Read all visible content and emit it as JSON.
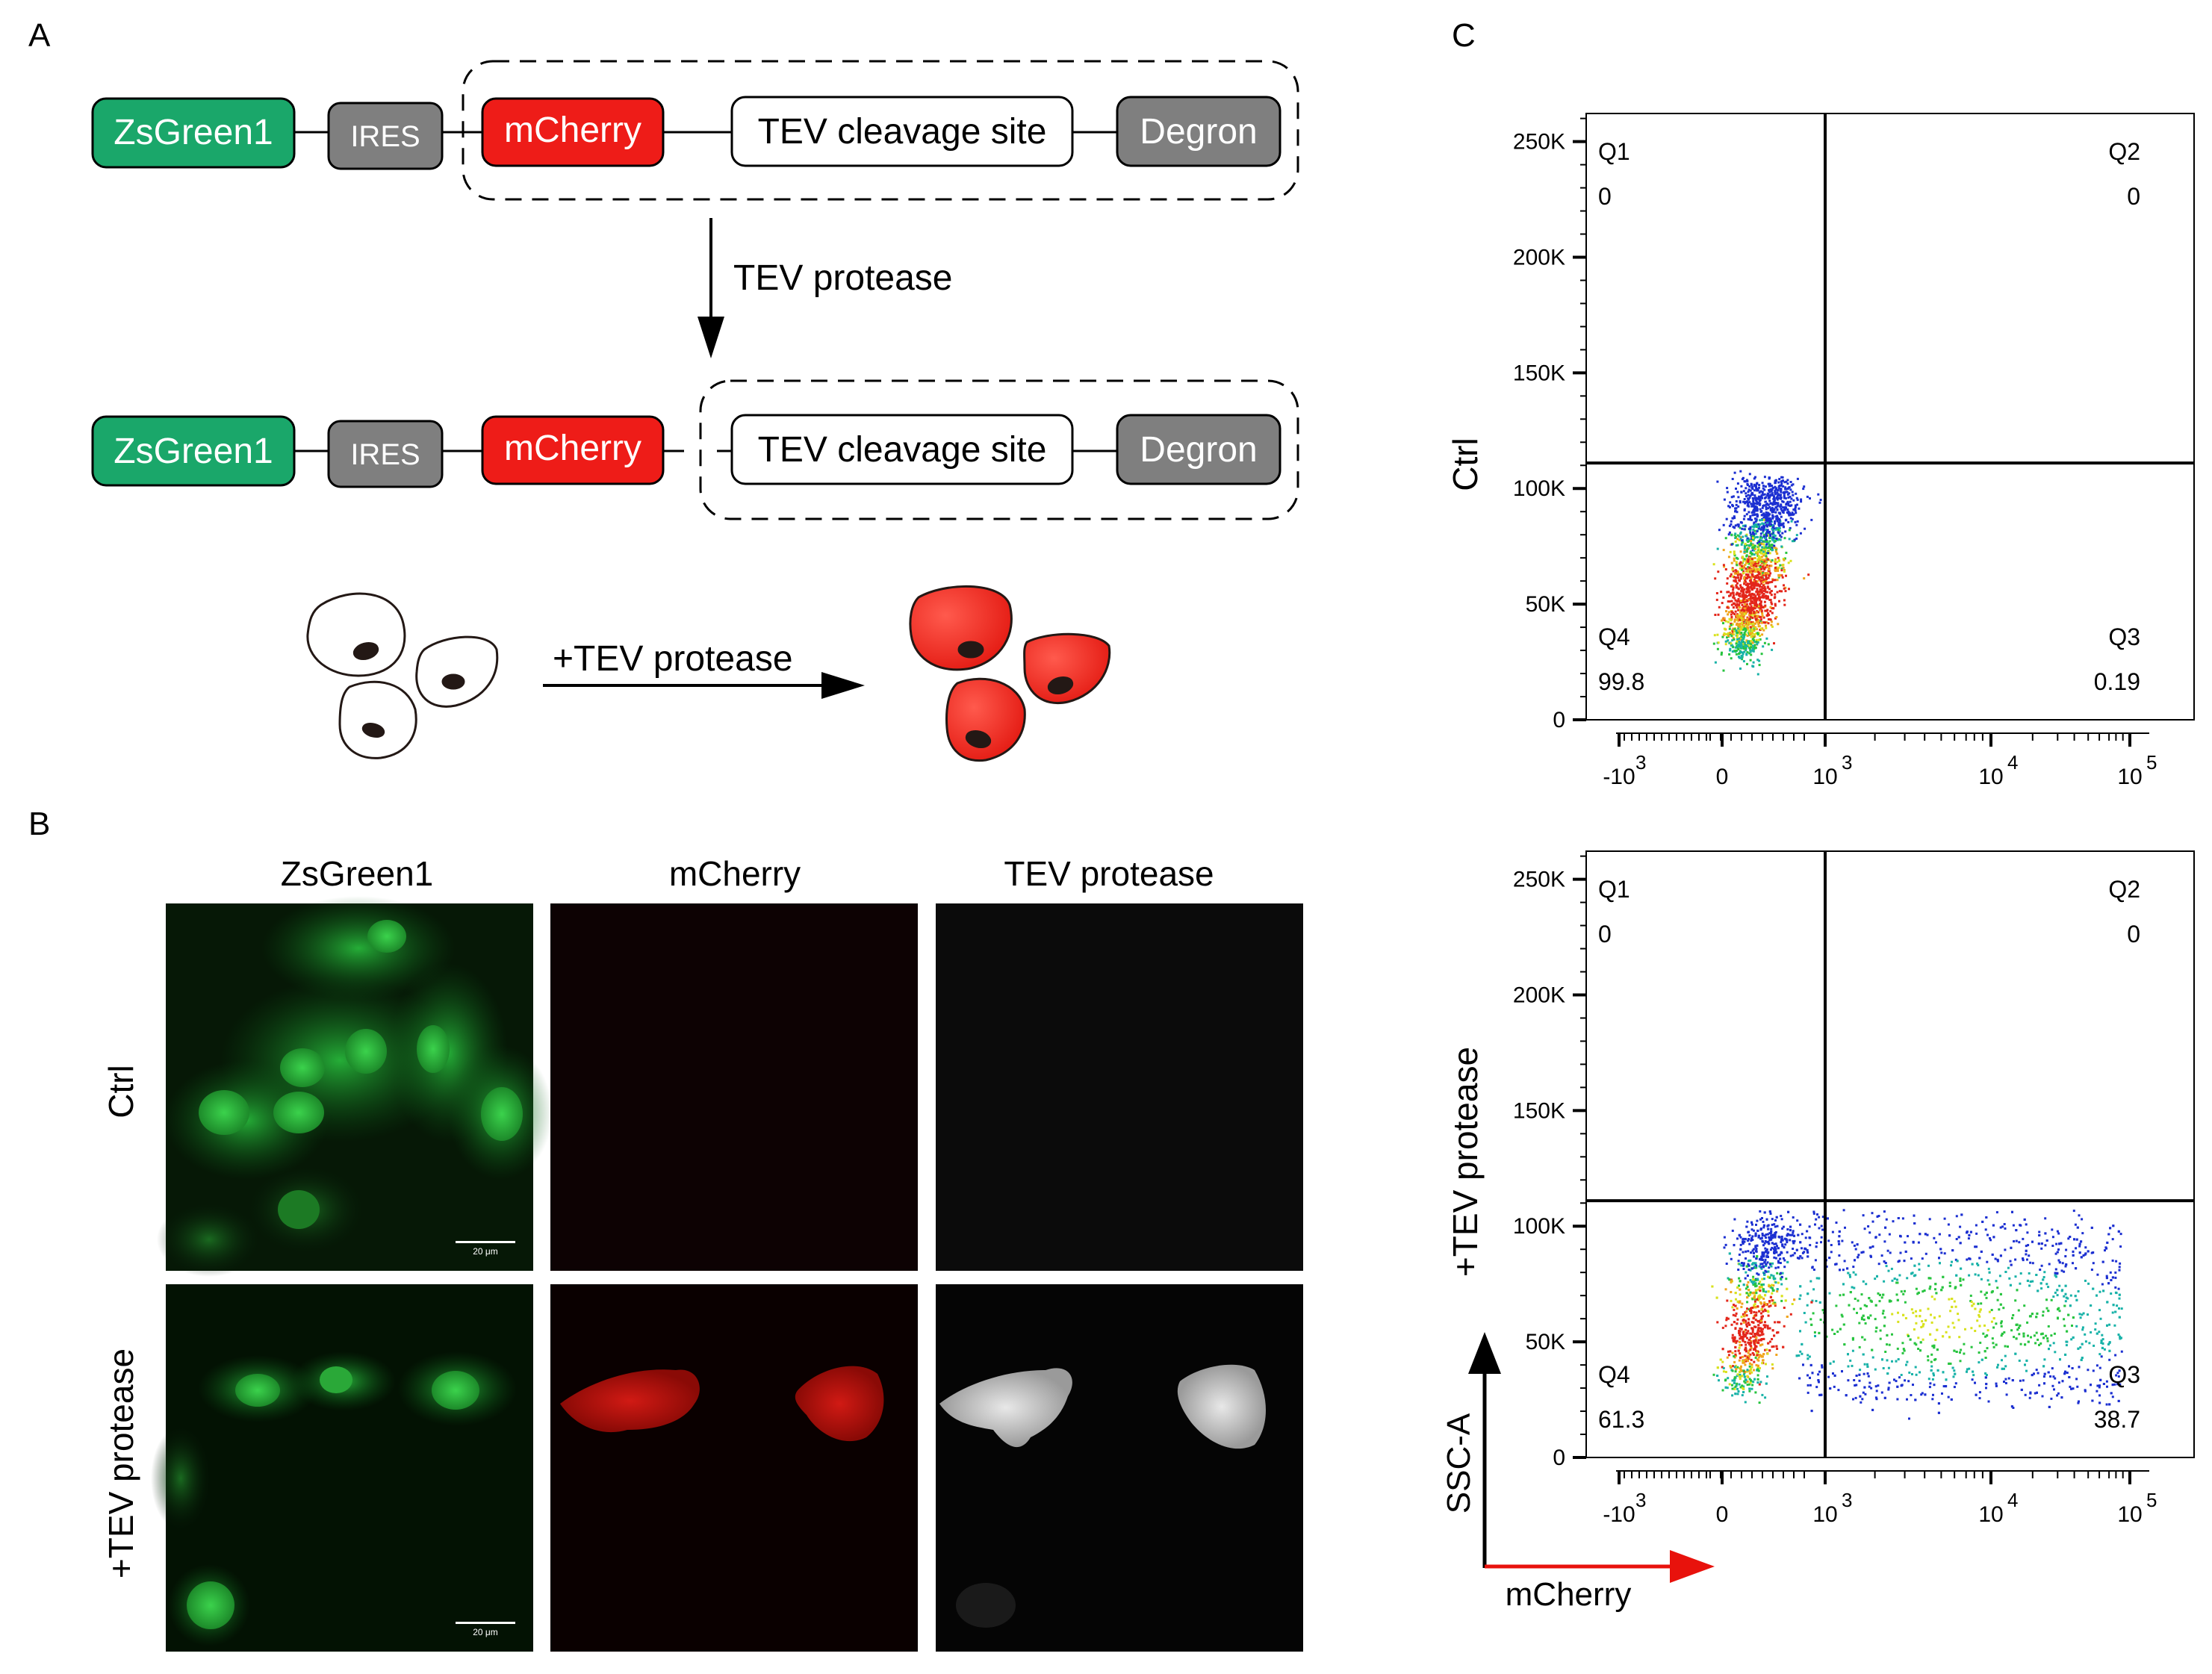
{
  "panels": {
    "a": "A",
    "b": "B",
    "c": "C"
  },
  "construct": {
    "zsgreen": "ZsGreen1",
    "ires": "IRES",
    "mcherry": "mCherry",
    "tev_site": "TEV cleavage site",
    "degron": "Degron",
    "arrow_label": "TEV protease",
    "cells_arrow_label": "+TEV protease"
  },
  "microscopy": {
    "columns": [
      "ZsGreen1",
      "mCherry",
      "TEV protease"
    ],
    "rows": [
      "Ctrl",
      "+TEV protease"
    ],
    "scale_bar": "20 μm"
  },
  "flow": {
    "rows": [
      "Ctrl",
      "+TEV protease"
    ],
    "x_label": "mCherry",
    "y_label": "SSC-A",
    "y_ticks": [
      "250K",
      "200K",
      "150K",
      "100K",
      "50K",
      "0"
    ],
    "x_ticks": [
      {
        "base": "-10",
        "exp": "3"
      },
      {
        "base": "0",
        "exp": ""
      },
      {
        "base": "10",
        "exp": "3"
      },
      {
        "base": "10",
        "exp": "4"
      },
      {
        "base": "10",
        "exp": "5"
      }
    ],
    "quadrant_names": [
      "Q1",
      "Q2",
      "Q3",
      "Q4"
    ],
    "colors": {
      "axis_arrow_y": "#000000",
      "axis_arrow_x": "#e8120c"
    }
  },
  "chart_data": [
    {
      "type": "scatter",
      "title": "",
      "row_label": "Ctrl",
      "xlabel": "mCherry",
      "ylabel": "SSC-A",
      "ylim": [
        0,
        262144
      ],
      "quadrants": {
        "Q1": "0",
        "Q2": "0",
        "Q3": "0.19",
        "Q4": "99.8"
      }
    },
    {
      "type": "scatter",
      "title": "",
      "row_label": "+TEV protease",
      "xlabel": "mCherry",
      "ylabel": "SSC-A",
      "ylim": [
        0,
        262144
      ],
      "quadrants": {
        "Q1": "0",
        "Q2": "0",
        "Q3": "38.7",
        "Q4": "61.3"
      }
    }
  ]
}
